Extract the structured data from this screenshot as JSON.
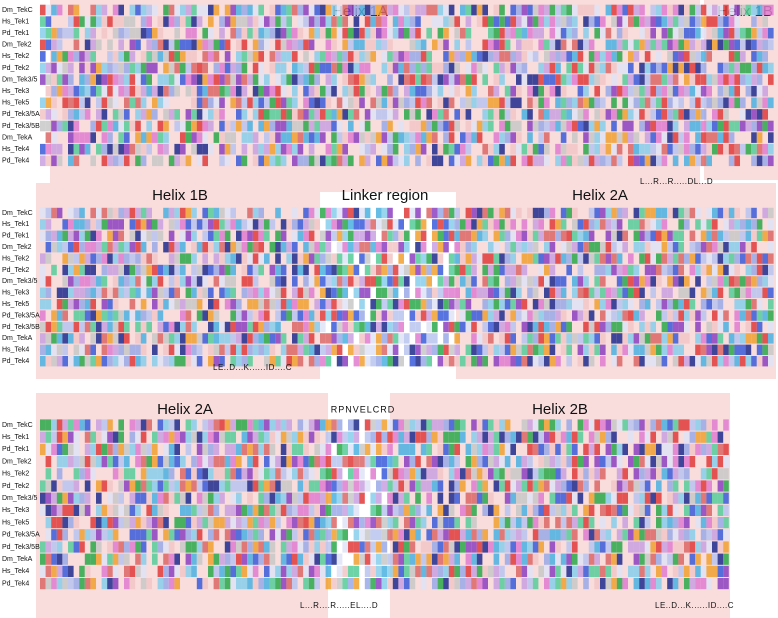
{
  "sequence_names": [
    "Dm_TekC",
    "Hs_Tek1",
    "Pd_Tek1",
    "Dm_Tek2",
    "Hs_Tek2",
    "Pd_Tek2",
    "Dm_Tek3/5",
    "Hs_Tek3",
    "Hs_Tek5",
    "Pd_Tek3/5A",
    "Pd_Tek3/5B",
    "Dm_TekA",
    "Hs_Tek4",
    "Pd_Tek4"
  ],
  "panels": [
    {
      "headers": [
        "Helix 1A",
        "Helix 1B"
      ],
      "motifs": [
        "L...R...R.....DL...D"
      ]
    },
    {
      "headers": [
        "Helix 1B",
        "Linker region",
        "Helix 2A"
      ],
      "motifs": [
        "LE..D...K......ID....C"
      ]
    },
    {
      "headers": [
        "Helix 2A",
        "RPNVELCRD",
        "Helix 2B"
      ],
      "motifs": [
        "L...R....R.....EL....D",
        "LE..D...K......ID....C"
      ]
    }
  ]
}
